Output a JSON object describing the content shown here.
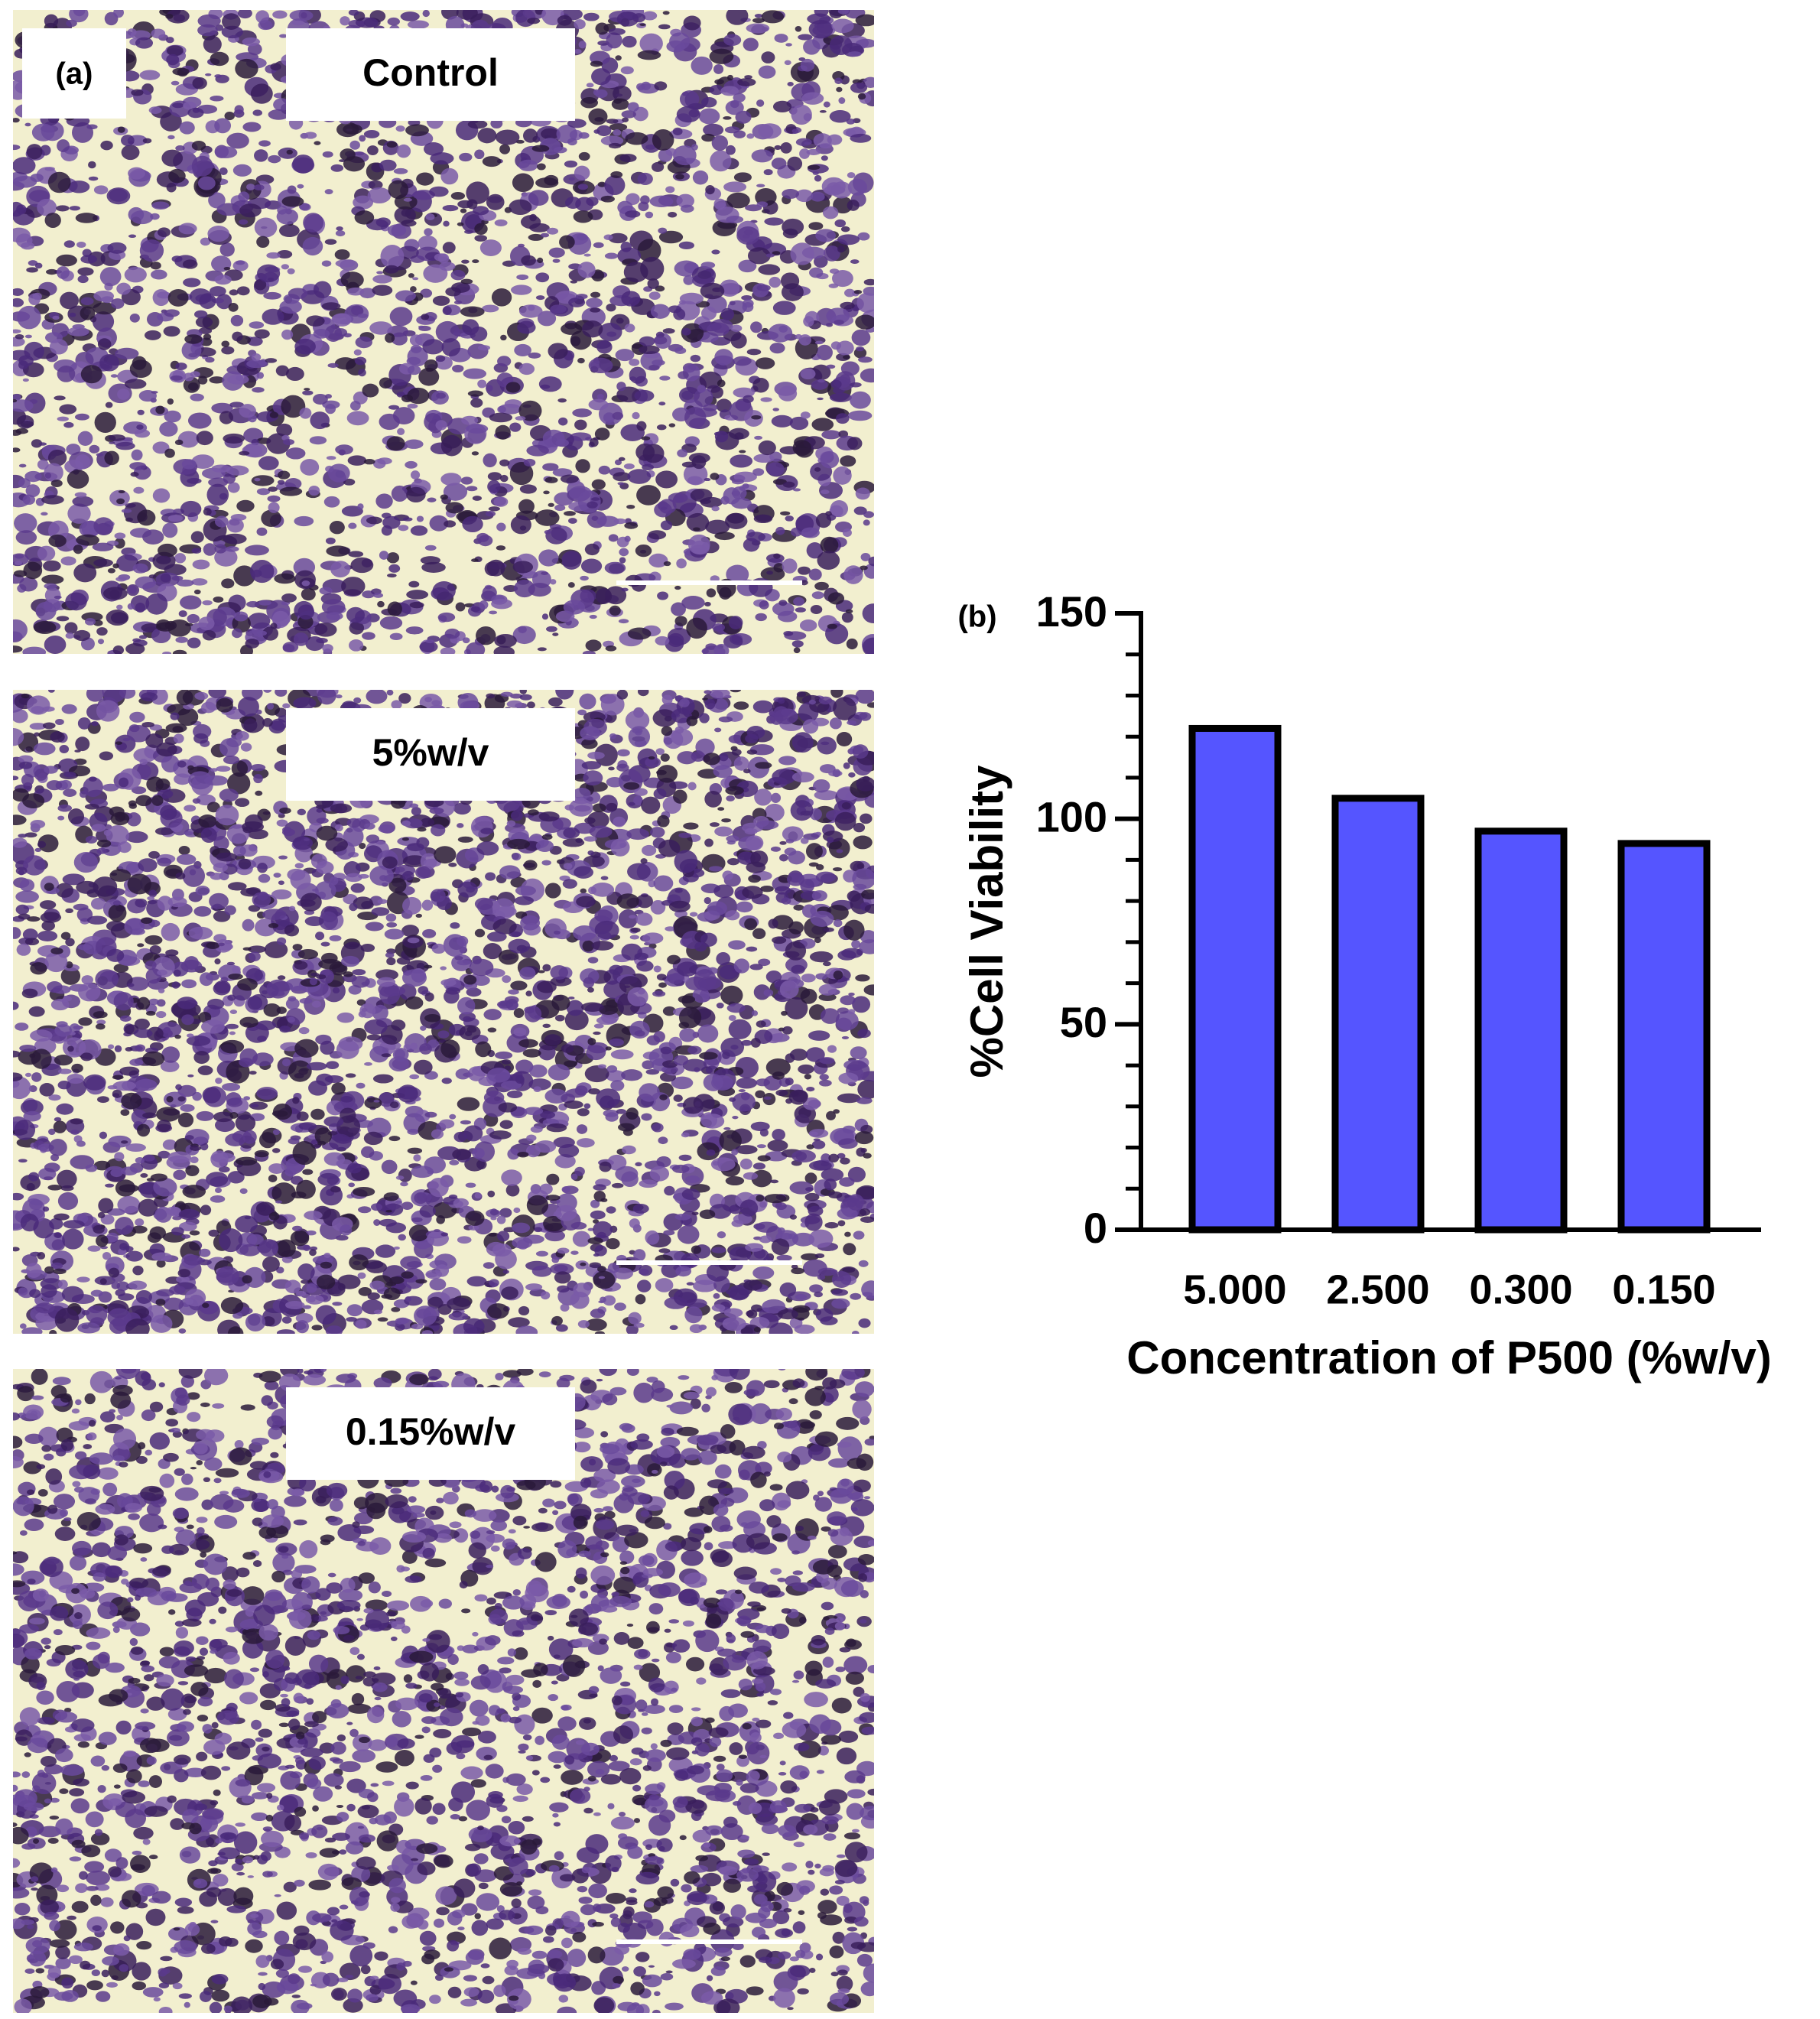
{
  "panel_a": {
    "label": "(a)",
    "images": [
      {
        "label": "Control"
      },
      {
        "label": "5%w/v"
      },
      {
        "label": "0.15%w/v"
      }
    ]
  },
  "chart_data": {
    "type": "bar",
    "panel_label": "(b)",
    "x_label": "Concentration of P500 (%w/v)",
    "y_label": "%Cell Viability",
    "categories": [
      "5.000",
      "2.500",
      "0.300",
      "0.150"
    ],
    "values": [
      122,
      105,
      97,
      94
    ],
    "color": "#5555ff",
    "ylim": [
      0,
      150
    ],
    "yticks": [
      0,
      50,
      100,
      150
    ],
    "yminorticks": [
      10,
      20,
      30,
      40,
      60,
      70,
      80,
      90,
      110,
      120,
      130,
      140
    ]
  }
}
